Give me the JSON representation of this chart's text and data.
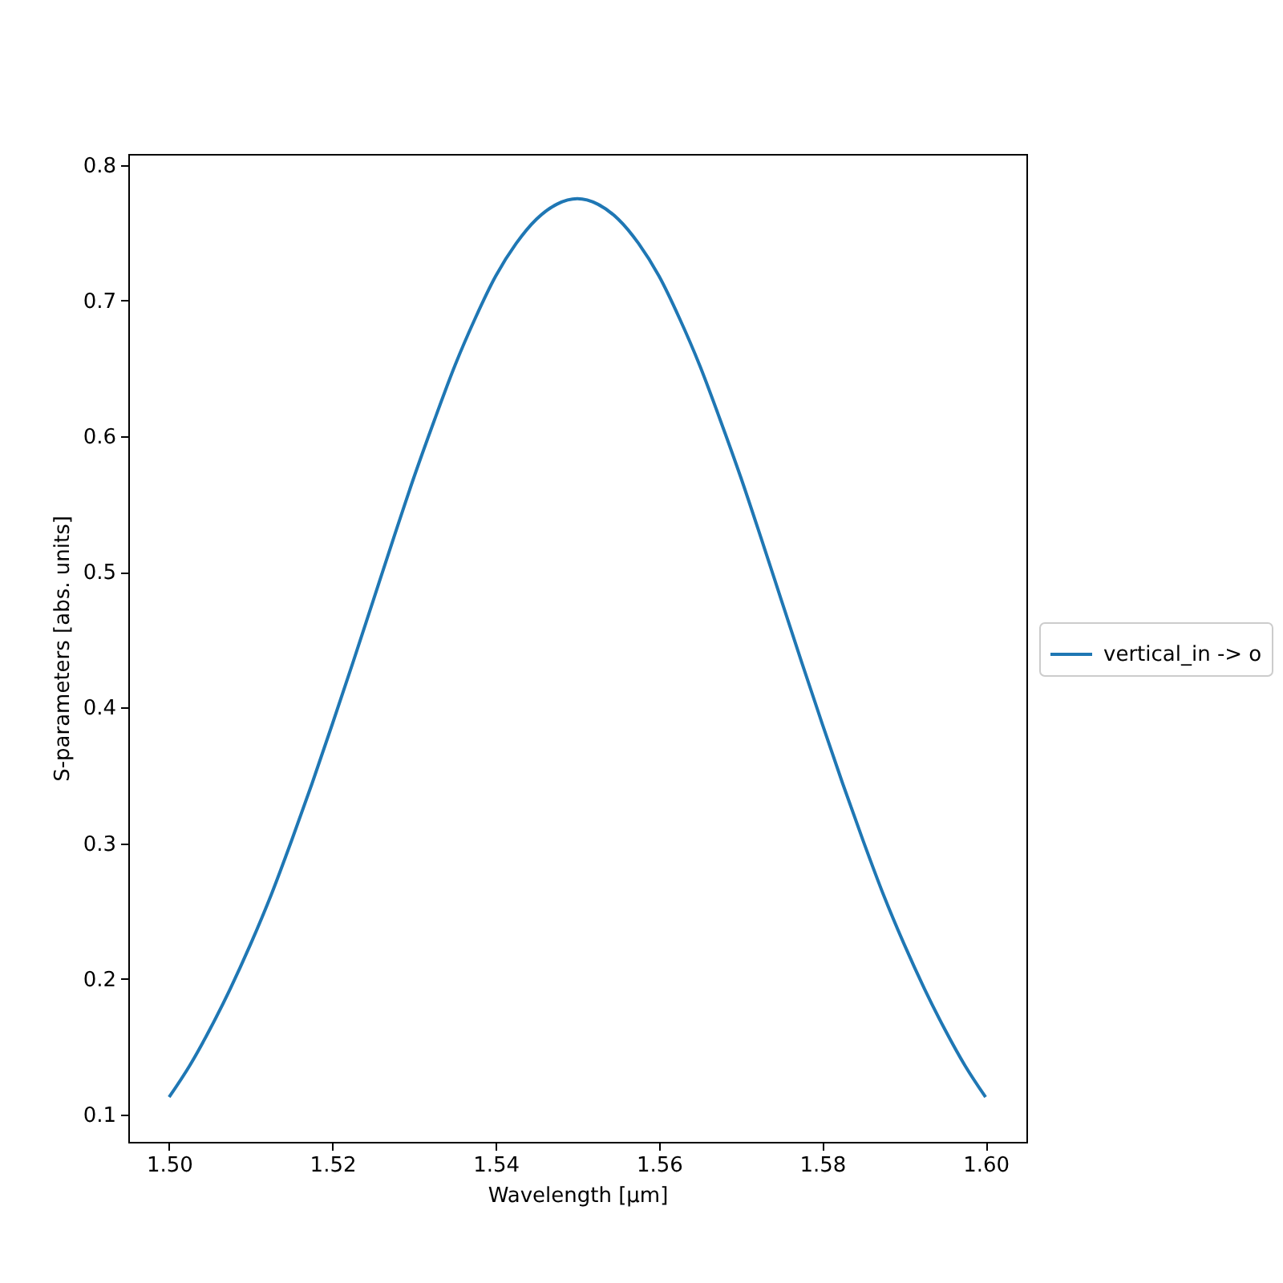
{
  "chart_data": {
    "type": "line",
    "xlabel": "Wavelength [μm]",
    "ylabel": "S-parameters [abs. units]",
    "x": [
      1.5,
      1.5025,
      1.505,
      1.5075,
      1.51,
      1.5125,
      1.515,
      1.5175,
      1.52,
      1.5225,
      1.525,
      1.5275,
      1.53,
      1.5325,
      1.535,
      1.5375,
      1.54,
      1.5425,
      1.545,
      1.5475,
      1.55,
      1.5525,
      1.555,
      1.5575,
      1.56,
      1.5625,
      1.565,
      1.5675,
      1.57,
      1.5725,
      1.575,
      1.5775,
      1.58,
      1.5825,
      1.585,
      1.5875,
      1.59,
      1.5925,
      1.595,
      1.5975,
      1.6
    ],
    "series": [
      {
        "name": "vertical_in -> o",
        "color": "#1f77b4",
        "values": [
          0.113,
          0.136,
          0.163,
          0.193,
          0.226,
          0.262,
          0.302,
          0.344,
          0.388,
          0.433,
          0.479,
          0.525,
          0.57,
          0.612,
          0.652,
          0.687,
          0.718,
          0.742,
          0.76,
          0.771,
          0.775,
          0.771,
          0.76,
          0.742,
          0.718,
          0.687,
          0.652,
          0.612,
          0.57,
          0.525,
          0.479,
          0.433,
          0.388,
          0.344,
          0.302,
          0.262,
          0.226,
          0.193,
          0.163,
          0.136,
          0.113
        ]
      }
    ],
    "xlim": [
      1.495,
      1.605
    ],
    "ylim": [
      0.08,
      0.808
    ],
    "xticks": [
      {
        "value": 1.5,
        "label": "1.50"
      },
      1.52,
      1.54,
      1.56,
      1.58,
      {
        "value": 1.6,
        "label": "1.60"
      }
    ],
    "yticks": [
      0.1,
      0.2,
      0.3,
      0.4,
      0.5,
      0.6,
      0.7,
      0.8
    ],
    "grid": false,
    "legend": "right"
  }
}
